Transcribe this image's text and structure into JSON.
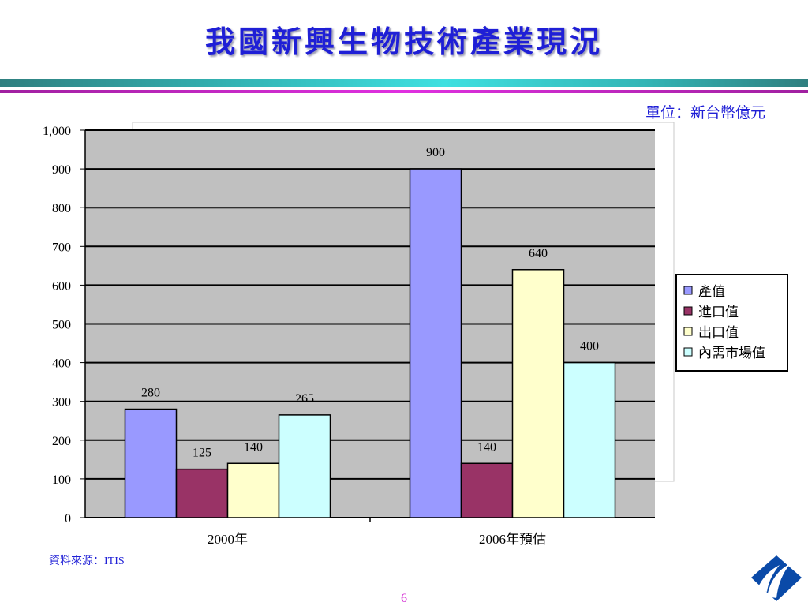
{
  "slide": {
    "title": "我國新興生物技術產業現況",
    "unit_label": "單位：新台幣億元",
    "source_prefix": "資料來源：",
    "source_name": "ITIS",
    "page_number": "6"
  },
  "colors": {
    "title": "#1f1fd6",
    "plot_bg": "#c0c0c0",
    "series": [
      "#9999ff",
      "#993366",
      "#ffffcc",
      "#ccffff"
    ]
  },
  "chart_data": {
    "type": "bar",
    "categories": [
      "2000年",
      "2006年預估"
    ],
    "series": [
      {
        "name": "產值",
        "values": [
          280,
          900
        ]
      },
      {
        "name": "進口值",
        "values": [
          125,
          140
        ]
      },
      {
        "name": "出口值",
        "values": [
          140,
          640
        ]
      },
      {
        "name": "內需市場值",
        "values": [
          265,
          400
        ]
      }
    ],
    "data_labels": [
      [
        "280",
        "900"
      ],
      [
        "125",
        "140"
      ],
      [
        "140",
        "640"
      ],
      [
        "265",
        "400"
      ]
    ],
    "ylim": [
      0,
      1000
    ],
    "yticks": [
      "0",
      "100",
      "200",
      "300",
      "400",
      "500",
      "600",
      "700",
      "800",
      "900",
      "1,000"
    ],
    "grid": true,
    "legend_position": "right"
  }
}
